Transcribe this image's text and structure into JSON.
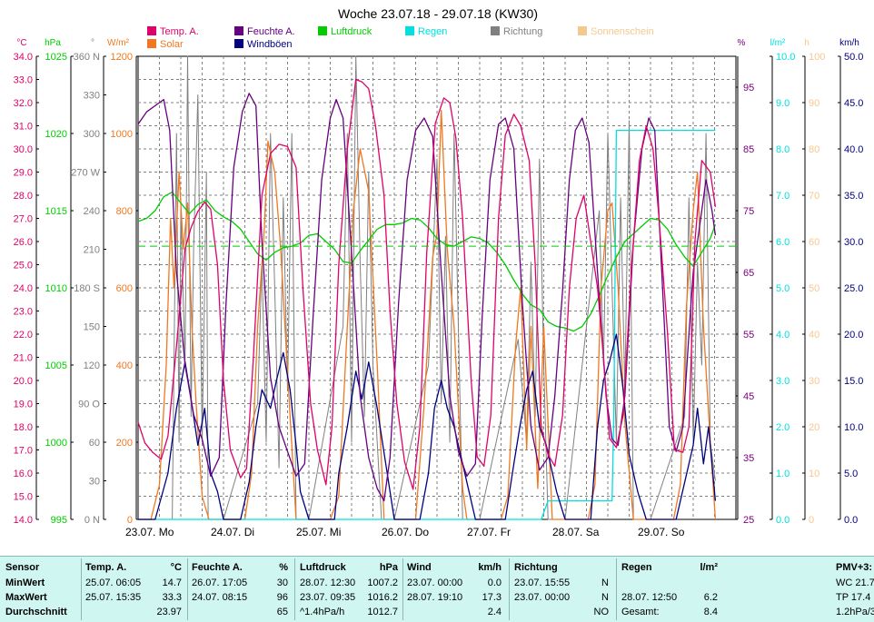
{
  "chart_data": {
    "type": "line",
    "title": "Woche 23.07.18 - 29.07.18 (KW30)",
    "x_labels": [
      "23.07. Mo",
      "24.07. Di",
      "25.07. Mi",
      "26.07. Do",
      "27.07. Fr",
      "28.07. Sa",
      "29.07. So"
    ],
    "x_range_days": [
      0,
      7
    ],
    "legend": [
      {
        "label": "Temp. A.",
        "color": "#e0006a"
      },
      {
        "label": "Feuchte A.",
        "color": "#660080"
      },
      {
        "label": "Luftdruck",
        "color": "#00cc00"
      },
      {
        "label": "Regen",
        "color": "#00e0e0"
      },
      {
        "label": "Richtung",
        "color": "#808080"
      },
      {
        "label": "Sonnenschein",
        "color": "#f5c890"
      },
      {
        "label": "Solar",
        "color": "#f07820"
      },
      {
        "label": "Windböen",
        "color": "#000080"
      }
    ],
    "axes": {
      "temp": {
        "unit": "°C",
        "ylim": [
          14.0,
          34.0
        ],
        "color": "#e0006a",
        "ticks": [
          "14.0",
          "15.0",
          "16.0",
          "17.0",
          "18.0",
          "19.0",
          "20.0",
          "21.0",
          "22.0",
          "23.0",
          "24.0",
          "25.0",
          "26.0",
          "27.0",
          "28.0",
          "29.0",
          "30.0",
          "31.0",
          "32.0",
          "33.0",
          "34.0"
        ]
      },
      "pressure": {
        "unit": "hPa",
        "ylim": [
          995,
          1025
        ],
        "color": "#00cc00",
        "ticks": [
          "995",
          "1000",
          "1005",
          "1010",
          "1015",
          "1020",
          "1025"
        ]
      },
      "direction": {
        "unit": "°",
        "ylim": [
          0,
          360
        ],
        "color": "#808080",
        "ticks": [
          "0 N",
          "30",
          "60",
          "90 O",
          "120",
          "150",
          "180 S",
          "210",
          "240",
          "270 W",
          "300",
          "330",
          "360 N"
        ]
      },
      "solar": {
        "unit": "W/m²",
        "ylim": [
          0,
          1200
        ],
        "color": "#f07820",
        "ticks": [
          "0",
          "200",
          "400",
          "600",
          "800",
          "1000",
          "1200"
        ]
      },
      "humidity": {
        "unit": "%",
        "ylim": [
          25,
          100
        ],
        "color": "#800080",
        "ticks": [
          "25",
          "35",
          "45",
          "55",
          "65",
          "75",
          "85",
          "95"
        ]
      },
      "rain": {
        "unit": "l/m²",
        "ylim": [
          0.0,
          10.0
        ],
        "color": "#00e0e0",
        "ticks": [
          "0.0",
          "1.0",
          "2.0",
          "3.0",
          "4.0",
          "5.0",
          "6.0",
          "7.0",
          "8.0",
          "9.0",
          "10.0"
        ]
      },
      "sunshine": {
        "unit": "h",
        "ylim": [
          0,
          100
        ],
        "color": "#f5c890",
        "ticks": [
          "0",
          "10",
          "20",
          "30",
          "40",
          "50",
          "60",
          "70",
          "80",
          "90",
          "100"
        ]
      },
      "wind": {
        "unit": "km/h",
        "ylim": [
          0.0,
          50.0
        ],
        "color": "#000080",
        "ticks": [
          "0.0",
          "5.0",
          "10.0",
          "15.0",
          "20.0",
          "25.0",
          "30.0",
          "35.0",
          "40.0",
          "45.0",
          "50.0"
        ]
      }
    },
    "series": [
      {
        "name": "Temp. A.",
        "color": "#e0006a",
        "axis": "temp",
        "x": [
          0,
          0.08,
          0.17,
          0.27,
          0.35,
          0.45,
          0.55,
          0.62,
          0.7,
          0.78,
          0.85,
          0.93,
          1.0,
          1.08,
          1.2,
          1.27,
          1.35,
          1.45,
          1.55,
          1.65,
          1.75,
          1.85,
          1.93,
          2.02,
          2.1,
          2.2,
          2.27,
          2.35,
          2.45,
          2.55,
          2.62,
          2.7,
          2.78,
          2.88,
          2.95,
          3.03,
          3.12,
          3.22,
          3.3,
          3.38,
          3.48,
          3.58,
          3.65,
          3.72,
          3.8,
          3.9,
          3.97,
          4.05,
          4.13,
          4.22,
          4.3,
          4.4,
          4.48,
          4.58,
          4.65,
          4.72,
          4.8,
          4.88,
          4.97,
          5.05,
          5.13,
          5.22,
          5.3,
          5.38,
          5.45,
          5.52,
          5.6,
          5.68,
          5.78,
          5.87,
          5.95,
          6.03,
          6.1,
          6.2,
          6.28,
          6.38,
          6.45,
          6.52,
          6.6,
          6.7,
          6.76
        ],
        "values": [
          18.2,
          17.3,
          16.9,
          16.6,
          17.6,
          21.5,
          25.7,
          26.6,
          27.3,
          27.7,
          27.4,
          25.0,
          20.0,
          17.0,
          15.8,
          16.2,
          21.0,
          28.0,
          29.8,
          30.2,
          30.1,
          29.2,
          24.0,
          19.0,
          17.0,
          15.5,
          18.0,
          25.0,
          30.0,
          33.0,
          32.9,
          32.6,
          31.0,
          28.0,
          23.0,
          19.0,
          16.5,
          15.3,
          18.0,
          25.5,
          31.1,
          32.2,
          32.0,
          30.5,
          27.0,
          20.0,
          16.7,
          16.3,
          18.5,
          27.0,
          30.6,
          31.5,
          31.0,
          29.5,
          25.0,
          18.0,
          16.8,
          16.3,
          18.5,
          24.0,
          27.0,
          28.0,
          26.0,
          24.0,
          21.0,
          17.5,
          17.1,
          18.5,
          25.0,
          29.5,
          31.0,
          30.0,
          27.0,
          22.0,
          17.0,
          16.9,
          18.0,
          26.0,
          29.5,
          29.0,
          27.5
        ]
      },
      {
        "name": "Feuchte A.",
        "color": "#660080",
        "axis": "humidity",
        "x": [
          0,
          0.1,
          0.2,
          0.3,
          0.37,
          0.45,
          0.55,
          0.65,
          0.75,
          0.85,
          0.95,
          1.03,
          1.12,
          1.22,
          1.3,
          1.38,
          1.45,
          1.55,
          1.65,
          1.75,
          1.85,
          1.95,
          2.05,
          2.15,
          2.25,
          2.32,
          2.4,
          2.5,
          2.6,
          2.7,
          2.8,
          2.88,
          2.95,
          3.05,
          3.15,
          3.25,
          3.35,
          3.45,
          3.55,
          3.65,
          3.75,
          3.85,
          3.95,
          4.03,
          4.12,
          4.22,
          4.3,
          4.4,
          4.5,
          4.6,
          4.7,
          4.8,
          4.88,
          4.97,
          5.05,
          5.12,
          5.2,
          5.28,
          5.38,
          5.48,
          5.55,
          5.62,
          5.7,
          5.8,
          5.9,
          5.98,
          6.05,
          6.15,
          6.22,
          6.3,
          6.38,
          6.45,
          6.5,
          6.57,
          6.65,
          6.72,
          6.76
        ],
        "values": [
          89,
          91,
          92,
          93,
          88,
          65,
          50,
          42,
          38,
          32,
          35,
          60,
          82,
          91,
          94,
          92,
          70,
          48,
          40,
          36,
          32,
          34,
          58,
          80,
          90,
          93,
          90,
          68,
          45,
          35,
          30,
          28,
          35,
          60,
          80,
          88,
          90,
          87,
          65,
          45,
          36,
          32,
          34,
          58,
          80,
          89,
          90,
          85,
          60,
          40,
          33,
          35,
          45,
          62,
          80,
          88,
          90,
          86,
          65,
          45,
          38,
          37,
          45,
          70,
          85,
          90,
          88,
          60,
          40,
          36,
          40,
          55,
          65,
          72,
          80,
          75,
          71
        ]
      },
      {
        "name": "Luftdruck",
        "color": "#00cc00",
        "axis": "pressure",
        "x": [
          0,
          0.1,
          0.2,
          0.3,
          0.4,
          0.5,
          0.6,
          0.7,
          0.8,
          0.9,
          1.0,
          1.1,
          1.2,
          1.3,
          1.4,
          1.5,
          1.6,
          1.7,
          1.8,
          1.9,
          2.0,
          2.1,
          2.2,
          2.3,
          2.4,
          2.5,
          2.6,
          2.7,
          2.8,
          2.9,
          3.0,
          3.1,
          3.2,
          3.3,
          3.4,
          3.5,
          3.6,
          3.7,
          3.8,
          3.9,
          4.0,
          4.1,
          4.2,
          4.3,
          4.4,
          4.5,
          4.6,
          4.7,
          4.8,
          4.9,
          5.0,
          5.1,
          5.2,
          5.3,
          5.4,
          5.5,
          5.6,
          5.7,
          5.8,
          5.9,
          6.0,
          6.1,
          6.2,
          6.3,
          6.4,
          6.5,
          6.6,
          6.7,
          6.76
        ],
        "values": [
          1014.3,
          1014.5,
          1015.0,
          1015.9,
          1016.2,
          1015.5,
          1014.8,
          1015.4,
          1015.7,
          1015.0,
          1014.6,
          1014.3,
          1013.8,
          1013.0,
          1012.2,
          1011.8,
          1012.3,
          1012.6,
          1012.7,
          1012.9,
          1013.4,
          1013.5,
          1013.0,
          1012.5,
          1011.7,
          1011.6,
          1012.4,
          1013.1,
          1013.8,
          1014.1,
          1014.1,
          1014.2,
          1014.5,
          1014.4,
          1013.9,
          1013.2,
          1012.8,
          1012.7,
          1013.0,
          1013.3,
          1013.2,
          1012.9,
          1012.3,
          1011.5,
          1010.5,
          1009.6,
          1008.9,
          1008.6,
          1007.8,
          1007.5,
          1007.4,
          1007.2,
          1007.5,
          1008.3,
          1009.5,
          1010.8,
          1012.0,
          1013.0,
          1013.5,
          1014.0,
          1014.5,
          1014.4,
          1013.8,
          1012.8,
          1012.0,
          1011.4,
          1012.3,
          1013.2,
          1014.1
        ]
      },
      {
        "name": "Regen",
        "color": "#00e0e0",
        "axis": "rain",
        "x": [
          0,
          4.72,
          4.8,
          5.55,
          5.57,
          5.6,
          6.76
        ],
        "values": [
          0,
          0,
          0.4,
          0.4,
          2.2,
          8.4,
          8.4
        ]
      },
      {
        "name": "Solar",
        "color": "#f07820",
        "axis": "solar",
        "x": [
          0,
          0.15,
          0.25,
          0.33,
          0.38,
          0.42,
          0.48,
          0.53,
          0.58,
          0.63,
          0.68,
          0.75,
          0.83,
          1.25,
          1.33,
          1.4,
          1.48,
          1.52,
          1.6,
          1.67,
          1.75,
          1.85,
          2.25,
          2.35,
          2.45,
          2.52,
          2.6,
          2.7,
          2.8,
          2.88,
          3.25,
          3.35,
          3.45,
          3.5,
          3.55,
          3.62,
          3.7,
          3.8,
          3.85,
          4.25,
          4.33,
          4.42,
          4.48,
          4.55,
          4.6,
          4.68,
          4.75,
          4.85,
          5.27,
          5.35,
          5.42,
          5.5,
          5.55,
          5.62,
          5.7,
          5.8,
          6.27,
          6.35,
          6.42,
          6.5,
          6.55,
          6.62,
          6.7,
          6.76
        ],
        "values": [
          0,
          0,
          90,
          400,
          780,
          600,
          900,
          700,
          820,
          500,
          300,
          60,
          0,
          0,
          120,
          500,
          760,
          980,
          900,
          700,
          380,
          0,
          0,
          60,
          500,
          800,
          960,
          850,
          400,
          0,
          0,
          300,
          680,
          740,
          1060,
          700,
          500,
          80,
          0,
          0,
          60,
          450,
          600,
          180,
          500,
          80,
          500,
          0,
          0,
          90,
          600,
          800,
          820,
          600,
          250,
          0,
          0,
          90,
          550,
          800,
          900,
          500,
          200,
          0
        ]
      },
      {
        "name": "Windböen",
        "color": "#000080",
        "axis": "wind",
        "x": [
          0,
          0.2,
          0.35,
          0.45,
          0.55,
          0.62,
          0.7,
          0.78,
          0.85,
          0.93,
          1.0,
          1.2,
          1.3,
          1.38,
          1.45,
          1.55,
          1.62,
          1.7,
          1.78,
          1.85,
          1.9,
          2.0,
          2.3,
          2.35,
          2.45,
          2.55,
          2.62,
          2.7,
          2.8,
          2.9,
          3.0,
          3.3,
          3.4,
          3.47,
          3.55,
          3.62,
          3.7,
          3.75,
          3.85,
          3.95,
          4.3,
          4.4,
          4.47,
          4.55,
          4.62,
          4.7,
          4.78,
          4.9,
          5.0,
          5.3,
          5.38,
          5.45,
          5.52,
          5.6,
          5.68,
          5.75,
          5.85,
          5.95,
          6.3,
          6.4,
          6.5,
          6.55,
          6.62,
          6.68,
          6.76
        ],
        "values": [
          0,
          0,
          5,
          12,
          17,
          13,
          8,
          12,
          5,
          3,
          0,
          0,
          4,
          10,
          14,
          12,
          15,
          18,
          14,
          8,
          3,
          0,
          0,
          5,
          10,
          16,
          13,
          17,
          12,
          6,
          0,
          0,
          5,
          12,
          15,
          12,
          10,
          8,
          4,
          0,
          0,
          6,
          10,
          14,
          16,
          10,
          8,
          3,
          0,
          0,
          10,
          15,
          17,
          20,
          14,
          7,
          3,
          0,
          0,
          4,
          8,
          12,
          6,
          10,
          2
        ]
      },
      {
        "name": "Richtung",
        "color": "#808080",
        "axis": "direction",
        "x": [
          0,
          0.4,
          0.45,
          0.48,
          0.5,
          0.55,
          0.58,
          0.62,
          0.65,
          0.7,
          0.75,
          0.8,
          0.82,
          1.0,
          1.4,
          1.45,
          1.5,
          1.55,
          1.6,
          1.65,
          1.7,
          1.75,
          1.8,
          1.85,
          2.0,
          2.4,
          2.45,
          2.5,
          2.55,
          2.6,
          2.65,
          2.7,
          2.75,
          2.8,
          2.85,
          3.0,
          3.4,
          3.5,
          3.55,
          3.6,
          3.65,
          3.7,
          3.75,
          3.8,
          4.0,
          4.45,
          4.5,
          4.55,
          4.6,
          4.65,
          4.7,
          4.75,
          4.8,
          5.0,
          5.4,
          5.45,
          5.5,
          5.55,
          5.6,
          5.65,
          5.7,
          5.75,
          5.8,
          6.0,
          6.4,
          6.45,
          6.5,
          6.55,
          6.6,
          6.65,
          6.7,
          6.76
        ],
        "values": [
          0,
          0,
          300,
          60,
          240,
          120,
          360,
          80,
          210,
          330,
          60,
          270,
          0,
          0,
          90,
          200,
          60,
          300,
          180,
          40,
          250,
          100,
          300,
          0,
          0,
          150,
          300,
          60,
          360,
          200,
          80,
          270,
          120,
          60,
          0,
          0,
          120,
          280,
          90,
          220,
          60,
          300,
          150,
          0,
          0,
          140,
          100,
          60,
          200,
          80,
          280,
          120,
          0,
          0,
          240,
          120,
          300,
          180,
          60,
          250,
          100,
          310,
          0,
          0,
          80,
          250,
          60,
          200,
          120,
          300,
          60,
          30
        ]
      }
    ]
  },
  "stats": {
    "headers": {
      "sensor": "Sensor",
      "temp": "Temp. A.",
      "temp_unit": "°C",
      "hum": "Feuchte A.",
      "hum_unit": "%",
      "press": "Luftdruck",
      "press_unit": "hPa",
      "wind": "Wind",
      "wind_unit": "km/h",
      "dir": "Richtung",
      "rain": "Regen",
      "rain_unit": "l/m²",
      "pmv": "PMV+3:"
    },
    "rows_labels": [
      "MinWert",
      "MaxWert",
      "Durchschnitt"
    ],
    "temp": [
      [
        "25.07.  06:05",
        "14.7"
      ],
      [
        "25.07.  15:35",
        "33.3"
      ],
      [
        "",
        "23.97"
      ]
    ],
    "hum": [
      [
        "26.07.  17:05",
        "30"
      ],
      [
        "24.07.  08:15",
        "96"
      ],
      [
        "",
        "65"
      ]
    ],
    "press": [
      [
        "28.07.  12:30",
        "1007.2"
      ],
      [
        "23.07.  09:35",
        "1016.2"
      ],
      [
        "^1.4hPa/h",
        "1012.7"
      ]
    ],
    "wind": [
      [
        "23.07.  00:00",
        "0.0"
      ],
      [
        "28.07.  19:10",
        "17.3"
      ],
      [
        "",
        "2.4"
      ]
    ],
    "dir": [
      [
        "23.07.  15:55",
        "N"
      ],
      [
        "23.07.  00:00",
        "N"
      ],
      [
        "",
        "NO"
      ]
    ],
    "rain": [
      [
        "",
        ""
      ],
      [
        "28.07.  12:50",
        "6.2"
      ],
      [
        "Gesamt:",
        "8.4"
      ]
    ],
    "pmv": [
      "WC 21.7",
      "TP 17.4",
      "1.2hPa/3"
    ]
  }
}
